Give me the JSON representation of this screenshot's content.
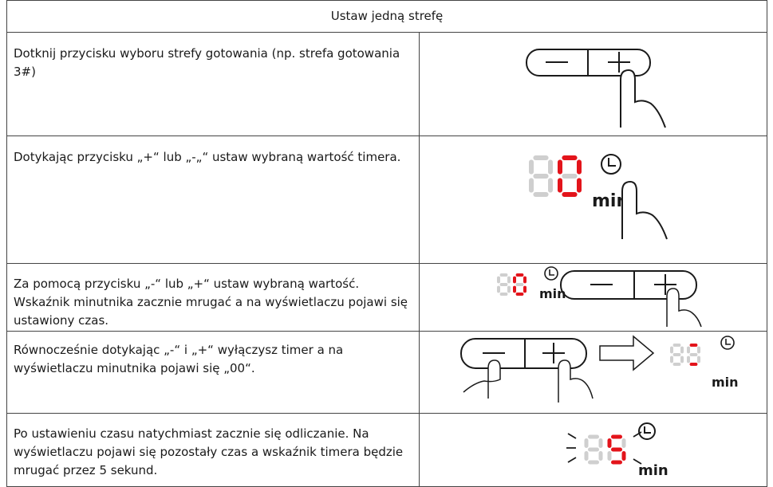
{
  "table": {
    "header": "Ustaw jedną strefę",
    "rows": [
      "Dotknij przycisku wyboru strefy gotowania (np. strefa gotowania 3#)",
      "Dotykając przycisku „+“ lub „-„“ ustaw wybraną wartość timera.",
      "Za pomocą przycisku „-“ lub „+“ ustaw wybraną wartość. Wskaźnik minutnika zacznie mrugać a na wyświetlaczu pojawi się ustawiony czas.",
      "Równocześnie dotykając „-“ i „+“ wyłączysz timer a na wyświetlaczu minutnika pojawi się „00“.",
      "Po ustawieniu czasu  natychmiast zacznie się odliczanie. Na wyświetlaczu pojawi się pozostały czas a wskaźnik timera będzie mrugać przez 5 sekund."
    ],
    "unit": "min"
  }
}
